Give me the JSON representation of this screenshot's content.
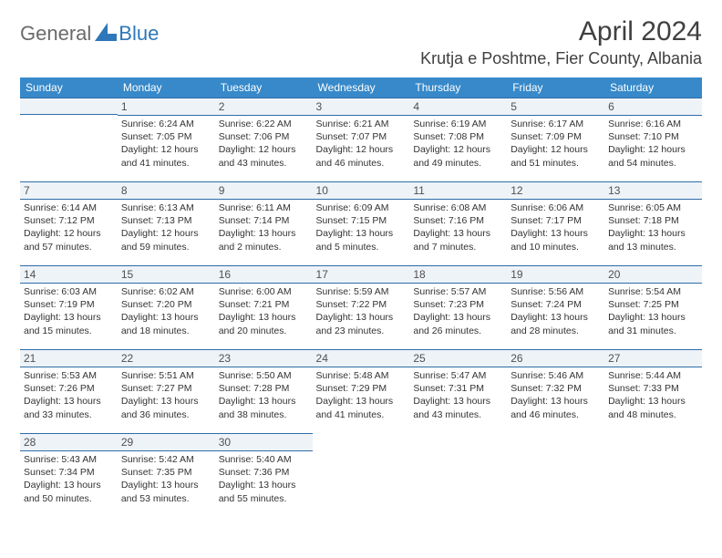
{
  "brand": {
    "general": "General",
    "blue": "Blue"
  },
  "title": "April 2024",
  "location": "Krutja e Poshtme, Fier County, Albania",
  "colors": {
    "header_bg": "#3789c9",
    "header_text": "#ffffff",
    "border": "#2e6da8",
    "dayrow_bg": "#eef3f8",
    "title_color": "#404040",
    "text_color": "#333333",
    "logo_gray": "#6b6b6b",
    "logo_blue": "#2e77b8"
  },
  "days_of_week": [
    "Sunday",
    "Monday",
    "Tuesday",
    "Wednesday",
    "Thursday",
    "Friday",
    "Saturday"
  ],
  "weeks": [
    [
      null,
      {
        "n": "1",
        "sr": "6:24 AM",
        "ss": "7:05 PM",
        "dl": "12 hours and 41 minutes."
      },
      {
        "n": "2",
        "sr": "6:22 AM",
        "ss": "7:06 PM",
        "dl": "12 hours and 43 minutes."
      },
      {
        "n": "3",
        "sr": "6:21 AM",
        "ss": "7:07 PM",
        "dl": "12 hours and 46 minutes."
      },
      {
        "n": "4",
        "sr": "6:19 AM",
        "ss": "7:08 PM",
        "dl": "12 hours and 49 minutes."
      },
      {
        "n": "5",
        "sr": "6:17 AM",
        "ss": "7:09 PM",
        "dl": "12 hours and 51 minutes."
      },
      {
        "n": "6",
        "sr": "6:16 AM",
        "ss": "7:10 PM",
        "dl": "12 hours and 54 minutes."
      }
    ],
    [
      {
        "n": "7",
        "sr": "6:14 AM",
        "ss": "7:12 PM",
        "dl": "12 hours and 57 minutes."
      },
      {
        "n": "8",
        "sr": "6:13 AM",
        "ss": "7:13 PM",
        "dl": "12 hours and 59 minutes."
      },
      {
        "n": "9",
        "sr": "6:11 AM",
        "ss": "7:14 PM",
        "dl": "13 hours and 2 minutes."
      },
      {
        "n": "10",
        "sr": "6:09 AM",
        "ss": "7:15 PM",
        "dl": "13 hours and 5 minutes."
      },
      {
        "n": "11",
        "sr": "6:08 AM",
        "ss": "7:16 PM",
        "dl": "13 hours and 7 minutes."
      },
      {
        "n": "12",
        "sr": "6:06 AM",
        "ss": "7:17 PM",
        "dl": "13 hours and 10 minutes."
      },
      {
        "n": "13",
        "sr": "6:05 AM",
        "ss": "7:18 PM",
        "dl": "13 hours and 13 minutes."
      }
    ],
    [
      {
        "n": "14",
        "sr": "6:03 AM",
        "ss": "7:19 PM",
        "dl": "13 hours and 15 minutes."
      },
      {
        "n": "15",
        "sr": "6:02 AM",
        "ss": "7:20 PM",
        "dl": "13 hours and 18 minutes."
      },
      {
        "n": "16",
        "sr": "6:00 AM",
        "ss": "7:21 PM",
        "dl": "13 hours and 20 minutes."
      },
      {
        "n": "17",
        "sr": "5:59 AM",
        "ss": "7:22 PM",
        "dl": "13 hours and 23 minutes."
      },
      {
        "n": "18",
        "sr": "5:57 AM",
        "ss": "7:23 PM",
        "dl": "13 hours and 26 minutes."
      },
      {
        "n": "19",
        "sr": "5:56 AM",
        "ss": "7:24 PM",
        "dl": "13 hours and 28 minutes."
      },
      {
        "n": "20",
        "sr": "5:54 AM",
        "ss": "7:25 PM",
        "dl": "13 hours and 31 minutes."
      }
    ],
    [
      {
        "n": "21",
        "sr": "5:53 AM",
        "ss": "7:26 PM",
        "dl": "13 hours and 33 minutes."
      },
      {
        "n": "22",
        "sr": "5:51 AM",
        "ss": "7:27 PM",
        "dl": "13 hours and 36 minutes."
      },
      {
        "n": "23",
        "sr": "5:50 AM",
        "ss": "7:28 PM",
        "dl": "13 hours and 38 minutes."
      },
      {
        "n": "24",
        "sr": "5:48 AM",
        "ss": "7:29 PM",
        "dl": "13 hours and 41 minutes."
      },
      {
        "n": "25",
        "sr": "5:47 AM",
        "ss": "7:31 PM",
        "dl": "13 hours and 43 minutes."
      },
      {
        "n": "26",
        "sr": "5:46 AM",
        "ss": "7:32 PM",
        "dl": "13 hours and 46 minutes."
      },
      {
        "n": "27",
        "sr": "5:44 AM",
        "ss": "7:33 PM",
        "dl": "13 hours and 48 minutes."
      }
    ],
    [
      {
        "n": "28",
        "sr": "5:43 AM",
        "ss": "7:34 PM",
        "dl": "13 hours and 50 minutes."
      },
      {
        "n": "29",
        "sr": "5:42 AM",
        "ss": "7:35 PM",
        "dl": "13 hours and 53 minutes."
      },
      {
        "n": "30",
        "sr": "5:40 AM",
        "ss": "7:36 PM",
        "dl": "13 hours and 55 minutes."
      },
      null,
      null,
      null,
      null
    ]
  ],
  "labels": {
    "sunrise": "Sunrise:",
    "sunset": "Sunset:",
    "daylight": "Daylight:"
  }
}
